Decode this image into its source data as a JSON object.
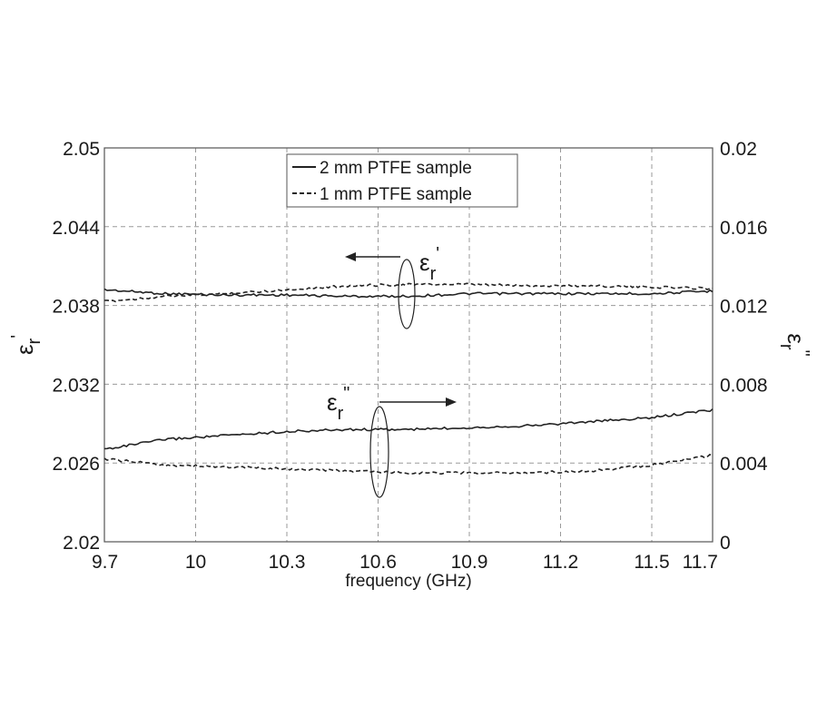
{
  "chart_data": {
    "type": "line",
    "xlabel": "frequency (GHz)",
    "y_left_label": "ε'r",
    "y_right_label": "ε\"r",
    "x_ticks": [
      "9.7",
      "10",
      "10.3",
      "10.6",
      "10.9",
      "11.2",
      "11.5",
      "11.7"
    ],
    "y_left_ticks": [
      "2.05",
      "2.044",
      "2.038",
      "2.032",
      "2.026",
      "2.02"
    ],
    "y_right_ticks": [
      "0.02",
      "0.016",
      "0.012",
      "0.008",
      "0.004",
      "0"
    ],
    "xlim": [
      9.7,
      11.7
    ],
    "ylim_left": [
      2.02,
      2.05
    ],
    "ylim_right": [
      0,
      0.02
    ],
    "grid": true,
    "legend": {
      "location": "top-center",
      "entries": [
        {
          "label": "2 mm PTFE sample",
          "style": "solid"
        },
        {
          "label": "1 mm PTFE sample",
          "style": "dashed"
        }
      ]
    },
    "annotations": [
      {
        "text": "ε'r",
        "arrow": "left",
        "refers_to": "left axis (real part)"
      },
      {
        "text": "ε\"r",
        "arrow": "right",
        "refers_to": "right axis (imaginary part)"
      }
    ],
    "x": [
      9.7,
      9.9,
      10.1,
      10.3,
      10.5,
      10.7,
      10.9,
      11.1,
      11.3,
      11.5,
      11.7
    ],
    "series": [
      {
        "name": "2 mm PTFE sample",
        "axis": "left",
        "style": "solid",
        "values": [
          2.0392,
          2.0389,
          2.0388,
          2.0388,
          2.0387,
          2.0387,
          2.0389,
          2.0389,
          2.0389,
          2.0389,
          2.0391
        ]
      },
      {
        "name": "1 mm PTFE sample",
        "axis": "left",
        "style": "dashed",
        "values": [
          2.0383,
          2.0387,
          2.0389,
          2.0392,
          2.0395,
          2.0396,
          2.0396,
          2.0395,
          2.0395,
          2.0394,
          2.0393
        ]
      },
      {
        "name": "2 mm PTFE sample",
        "axis": "right",
        "style": "solid",
        "values": [
          0.0047,
          0.0052,
          0.0054,
          0.0056,
          0.0057,
          0.0057,
          0.0058,
          0.0059,
          0.0061,
          0.0063,
          0.0067
        ]
      },
      {
        "name": "1 mm PTFE sample",
        "axis": "right",
        "style": "dashed",
        "values": [
          0.0042,
          0.0039,
          0.0038,
          0.0037,
          0.0036,
          0.0035,
          0.0035,
          0.0035,
          0.0036,
          0.0039,
          0.0044
        ]
      }
    ]
  }
}
